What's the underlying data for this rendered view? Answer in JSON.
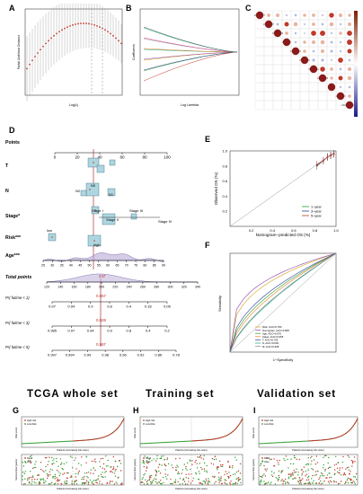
{
  "panel_labels": [
    "A",
    "B",
    "C",
    "D",
    "E",
    "F",
    "G",
    "H",
    "I"
  ],
  "panelA": {
    "xlabel": "Log(λ)",
    "ylabel": "Partial Likelihood Deviance"
  },
  "panelB": {
    "xlabel": "Log Lambda",
    "ylabel": "Coefficients"
  },
  "panelC": {
    "genes": [
      "LINC01977",
      "LINC01907",
      "LINC01819",
      "MAGED4",
      "LINC01481",
      "CDH9-AS1",
      "SRPX-AS1",
      "LINC00346",
      "MEG8",
      "AC011585",
      "LINC01023-AS1"
    ]
  },
  "panelD": {
    "rows": [
      "Points",
      "T",
      "N",
      "Stage*",
      "Risk***",
      "Age***",
      "Total points",
      "Pr( futime < 1)",
      "Pr( futime < 3)",
      "Pr( futime < 5)"
    ],
    "points_ticks": [
      "0",
      "20",
      "40",
      "60",
      "80",
      "100"
    ],
    "stage_labels": [
      "Stage I",
      "Stage II",
      "Stage III",
      "Stage IV"
    ],
    "n_labels": [
      "N0",
      "N1",
      "N2"
    ],
    "risk_labels": [
      "low",
      "high"
    ],
    "age_ticks": [
      "25",
      "30",
      "35",
      "40",
      "45",
      "50",
      "55",
      "60",
      "65",
      "70",
      "75",
      "80",
      "85",
      "90"
    ],
    "total_ticks": [
      "120",
      "140",
      "160",
      "180",
      "200",
      "220",
      "240",
      "260",
      "280",
      "300",
      "320",
      "340"
    ],
    "total_value": "247",
    "p1_ticks": [
      "0.97",
      "0.94",
      "0.9",
      "0.8",
      "0.4",
      "0.18",
      "0.06"
    ],
    "p1_value": "0.857",
    "p3_ticks": [
      "0.985",
      "0.97",
      "0.94",
      "0.9",
      "0.8",
      "0.4",
      "0.2"
    ],
    "p3_value": "0.928",
    "p5_ticks": [
      "0.997",
      "0.994",
      "0.99",
      "0.98",
      "0.96",
      "0.92",
      "0.86",
      "0.78"
    ],
    "p5_value": "0.987"
  },
  "panelE": {
    "xlabel": "Nomogram−predicted OS (%)",
    "ylabel": "Observed OS (%)",
    "ticks": [
      "0.2",
      "0.4",
      "0.6",
      "0.8",
      "1.0"
    ],
    "legend": [
      "1−year",
      "3−year",
      "5−year"
    ]
  },
  "panelF": {
    "xlabel": "1−Specificity",
    "ylabel": "Sensitivity",
    "legend": [
      "Risk, AUC=0.780",
      "Nomogram, AUC=0.808",
      "Age, AUC=0.676",
      "Stage, AUC=0.665",
      "T, AUC=0.705",
      "N, AUC=0.604",
      "M, AUC=0.608"
    ]
  },
  "sets": [
    {
      "title": "TCGA  whole  set"
    },
    {
      "title": "Training   set"
    },
    {
      "title": "Validation  set"
    }
  ],
  "risk_plot": {
    "legend_high": "High risk",
    "legend_low": "Low Risk",
    "xlabel": "Patients (increasing risk score)",
    "ylabel": "Risk score"
  },
  "surv_plot": {
    "legend_dead": "Dead",
    "legend_alive": "Alive",
    "xlabel": "Patients (increasing risk score)",
    "ylabel": "Survival time (years)"
  },
  "colors": {
    "red": "#c0392b",
    "green": "#2e9e2e",
    "blue": "#2c3e9e",
    "accent": "#8b1a1a"
  }
}
